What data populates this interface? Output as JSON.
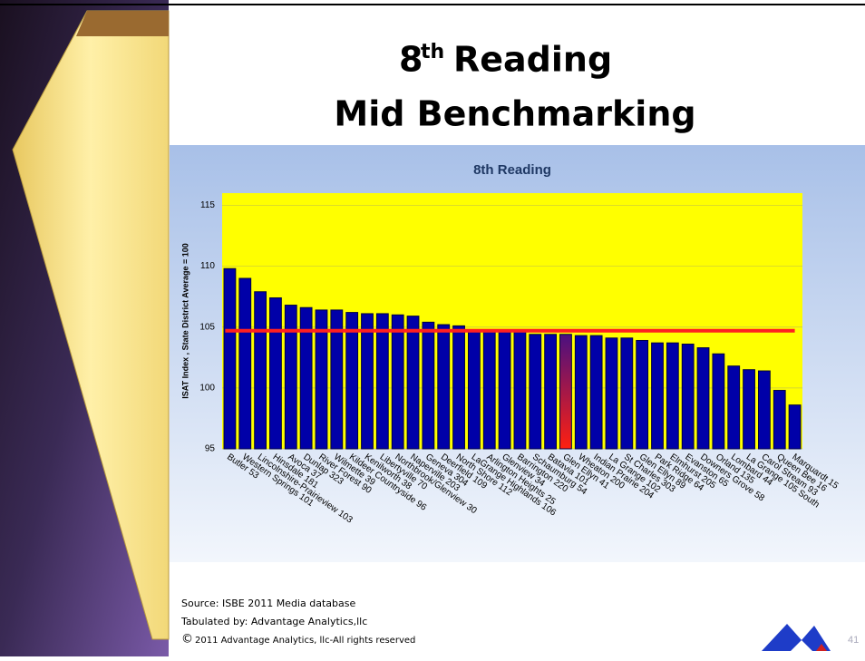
{
  "slide": {
    "title_number": "8",
    "title_superscript": "th",
    "title_rest": "Reading",
    "title_line2": "Mid Benchmarking",
    "source": "Source: ISBE 2011 Media database",
    "tabulated": "Tabulated by: Advantage Analytics,llc",
    "copyright_symbol": "©",
    "copyright": "2011 Advantage Analytics, llc-All rights reserved",
    "page_number": "41"
  },
  "chart_data": {
    "type": "bar",
    "title": "8th Reading",
    "ylabel": "ISAT Index , State District Average = 100",
    "categories": [
      "Butler 53",
      "Western Springs 101",
      "Lincolnshire-Prairieview 103",
      "Hinsdale 181",
      "Avoca 37",
      "Dunlap 323",
      "River Forest 90",
      "Wilmette 39",
      "Kildeer Countryside 96",
      "Kenilworth 38",
      "Libertyville 70",
      "Northbrook/Glenview 30",
      "Naperville 203",
      "Geneva 304",
      "Deerfield 109",
      "North Shore 112",
      "LaGrange Highlands 106",
      "Arlington Heights 25",
      "Glenview 34",
      "Barrington 220",
      "Schaumburg 54",
      "Batavia 101",
      "Glen Ellyn 41",
      "Wheaton 200",
      "Indian Prairie 204",
      "La Grange 102",
      "St Charles 303",
      "Glen Ellyn 89",
      "Park Ridge 64",
      "Elmhurst 205",
      "Evanston 65",
      "Downers Grove 58",
      "Orland 135",
      "Lombard 44",
      "La Grange 105 South",
      "Carol Stream 93",
      "Queen Bee 16",
      "Marquardt 15"
    ],
    "values": [
      109.8,
      109.0,
      107.9,
      107.4,
      106.8,
      106.6,
      106.4,
      106.4,
      106.2,
      106.1,
      106.1,
      106.0,
      105.9,
      105.4,
      105.2,
      105.1,
      104.7,
      104.7,
      104.7,
      104.7,
      104.4,
      104.4,
      104.4,
      104.3,
      104.3,
      104.1,
      104.1,
      103.9,
      103.7,
      103.7,
      103.6,
      103.3,
      102.8,
      101.8,
      101.5,
      101.4,
      99.8,
      98.6
    ],
    "colors": [
      "#0000a8",
      "#0000a8",
      "#0000a8",
      "#0000a8",
      "#0000a8",
      "#0000a8",
      "#0000a8",
      "#0000a8",
      "#0000a8",
      "#0000a8",
      "#0000a8",
      "#0000a8",
      "#0000a8",
      "#0000a8",
      "#0000a8",
      "#0000a8",
      "#0000a8",
      "#0000a8",
      "#0000a8",
      "#0000a8",
      "#0000a8",
      "#0000a8",
      "#e0101a",
      "#0000a8",
      "#0000a8",
      "#0000a8",
      "#0000a8",
      "#0000a8",
      "#0000a8",
      "#0000a8",
      "#0000a8",
      "#0000a8",
      "#0000a8",
      "#0000a8",
      "#0000a8",
      "#0000a8",
      "#0000a8",
      "#0000a8"
    ],
    "reference_line": 104.7,
    "reference_color": "#ff2020",
    "ylim": [
      95,
      116
    ],
    "yticks": [
      95,
      100,
      105,
      110,
      115
    ],
    "grid": true,
    "plot_background": "#ffff00"
  }
}
